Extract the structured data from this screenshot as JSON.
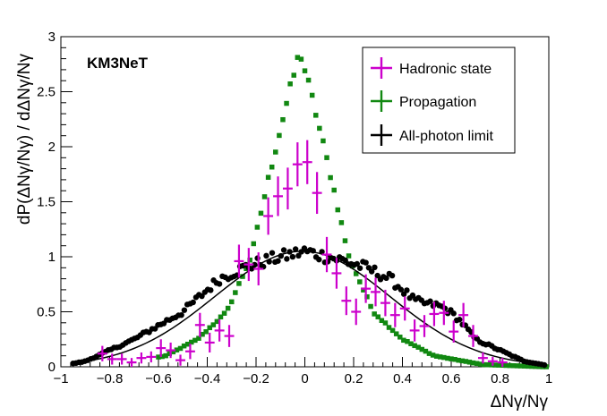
{
  "chart_data": {
    "type": "scatter",
    "title": "",
    "annotation": "KM3NeT",
    "xlabel": "ΔNγ/Nγ",
    "ylabel": "dP(ΔNγ/Nγ) / dΔNγ/Nγ",
    "xlim": [
      -1,
      1
    ],
    "ylim": [
      0,
      3
    ],
    "xticks": [
      "−1",
      "−0.8",
      "−0.6",
      "−0.4",
      "−0.2",
      "0",
      "0.2",
      "0.4",
      "0.6",
      "0.8",
      "1"
    ],
    "yticks": [
      "0",
      "0.5",
      "1",
      "1.5",
      "2",
      "2.5",
      "3"
    ],
    "legend_position": "top-right",
    "series": [
      {
        "name": "Hadronic state",
        "color": "#cc00cc",
        "marker": "error-bar",
        "x_half_width": 0.02,
        "points": [
          [
            -0.83,
            0.12,
            0.07
          ],
          [
            -0.79,
            0.07,
            0.05
          ],
          [
            -0.75,
            0.07,
            0.05
          ],
          [
            -0.71,
            0.04,
            0.04
          ],
          [
            -0.67,
            0.08,
            0.05
          ],
          [
            -0.63,
            0.09,
            0.05
          ],
          [
            -0.59,
            0.17,
            0.08
          ],
          [
            -0.55,
            0.15,
            0.07
          ],
          [
            -0.51,
            0.06,
            0.05
          ],
          [
            -0.47,
            0.14,
            0.07
          ],
          [
            -0.43,
            0.38,
            0.11
          ],
          [
            -0.39,
            0.22,
            0.09
          ],
          [
            -0.35,
            0.33,
            0.1
          ],
          [
            -0.31,
            0.28,
            0.1
          ],
          [
            -0.27,
            0.96,
            0.15
          ],
          [
            -0.23,
            0.93,
            0.15
          ],
          [
            -0.19,
            0.89,
            0.15
          ],
          [
            -0.15,
            1.37,
            0.17
          ],
          [
            -0.11,
            1.55,
            0.18
          ],
          [
            -0.07,
            1.62,
            0.19
          ],
          [
            -0.03,
            1.84,
            0.2
          ],
          [
            0.01,
            1.86,
            0.2
          ],
          [
            0.05,
            1.58,
            0.19
          ],
          [
            0.09,
            1.02,
            0.16
          ],
          [
            0.13,
            0.85,
            0.14
          ],
          [
            0.17,
            0.6,
            0.13
          ],
          [
            0.21,
            0.5,
            0.12
          ],
          [
            0.25,
            0.71,
            0.13
          ],
          [
            0.29,
            0.68,
            0.13
          ],
          [
            0.33,
            0.58,
            0.12
          ],
          [
            0.37,
            0.47,
            0.11
          ],
          [
            0.41,
            0.53,
            0.11
          ],
          [
            0.45,
            0.33,
            0.1
          ],
          [
            0.49,
            0.37,
            0.1
          ],
          [
            0.53,
            0.48,
            0.11
          ],
          [
            0.57,
            0.49,
            0.11
          ],
          [
            0.61,
            0.32,
            0.1
          ],
          [
            0.65,
            0.47,
            0.11
          ],
          [
            0.69,
            0.28,
            0.1
          ],
          [
            0.73,
            0.08,
            0.05
          ],
          [
            0.77,
            0.05,
            0.04
          ],
          [
            0.81,
            0.04,
            0.04
          ]
        ]
      },
      {
        "name": "Propagation",
        "color": "#118811",
        "marker": "square",
        "function": "peak 2.87 at x = -0.02; 1.7 at x = ±0.13; 1.0 at x = ±0.2; 0.5 at x = ±0.3; 0.25 at x = ±0.42; 0.1 at x = ±0.55; 0.02 at x = ±0.75",
        "x_start": -0.6,
        "x_end": 0.99,
        "x_step": 0.015
      },
      {
        "name": "All-photon limit",
        "color": "#000000",
        "marker": "dot",
        "function": "~1.05 near x = 0; 0.8 at x = ±0.35; 0.5 at x = ±0.5; 0.25 at x = ±0.7; 0.05 at x = ±0.9; excess bump near x = 0.6",
        "x_start": -0.95,
        "x_end": 0.99,
        "x_step": 0.012,
        "fit": "Gaussian, amplitude 1.05, mean -0.01, sigma 0.36"
      }
    ]
  }
}
